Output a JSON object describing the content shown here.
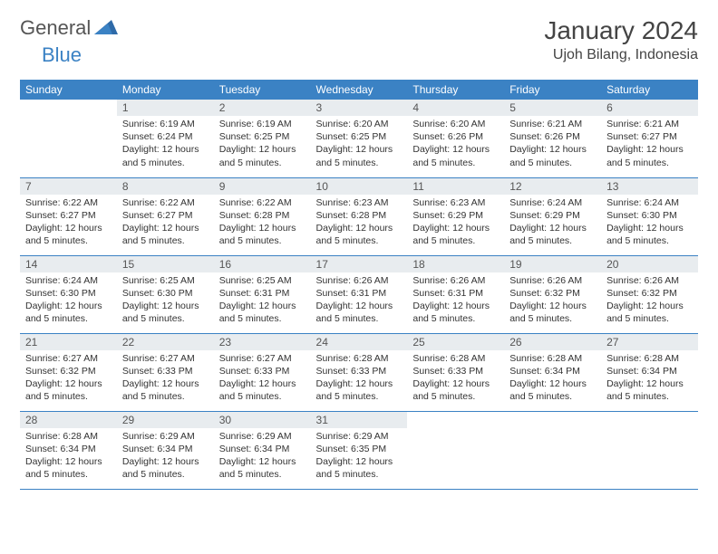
{
  "logo": {
    "text1": "General",
    "text2": "Blue"
  },
  "title": "January 2024",
  "location": "Ujoh Bilang, Indonesia",
  "colors": {
    "header_bg": "#3b82c4",
    "header_text": "#ffffff",
    "daynum_bg": "#e8ecef",
    "border": "#3b82c4",
    "logo_gray": "#555555",
    "logo_blue": "#3b82c4"
  },
  "weekdays": [
    "Sunday",
    "Monday",
    "Tuesday",
    "Wednesday",
    "Thursday",
    "Friday",
    "Saturday"
  ],
  "weeks": [
    [
      null,
      {
        "n": "1",
        "sr": "6:19 AM",
        "ss": "6:24 PM",
        "dl": "12 hours and 5 minutes."
      },
      {
        "n": "2",
        "sr": "6:19 AM",
        "ss": "6:25 PM",
        "dl": "12 hours and 5 minutes."
      },
      {
        "n": "3",
        "sr": "6:20 AM",
        "ss": "6:25 PM",
        "dl": "12 hours and 5 minutes."
      },
      {
        "n": "4",
        "sr": "6:20 AM",
        "ss": "6:26 PM",
        "dl": "12 hours and 5 minutes."
      },
      {
        "n": "5",
        "sr": "6:21 AM",
        "ss": "6:26 PM",
        "dl": "12 hours and 5 minutes."
      },
      {
        "n": "6",
        "sr": "6:21 AM",
        "ss": "6:27 PM",
        "dl": "12 hours and 5 minutes."
      }
    ],
    [
      {
        "n": "7",
        "sr": "6:22 AM",
        "ss": "6:27 PM",
        "dl": "12 hours and 5 minutes."
      },
      {
        "n": "8",
        "sr": "6:22 AM",
        "ss": "6:27 PM",
        "dl": "12 hours and 5 minutes."
      },
      {
        "n": "9",
        "sr": "6:22 AM",
        "ss": "6:28 PM",
        "dl": "12 hours and 5 minutes."
      },
      {
        "n": "10",
        "sr": "6:23 AM",
        "ss": "6:28 PM",
        "dl": "12 hours and 5 minutes."
      },
      {
        "n": "11",
        "sr": "6:23 AM",
        "ss": "6:29 PM",
        "dl": "12 hours and 5 minutes."
      },
      {
        "n": "12",
        "sr": "6:24 AM",
        "ss": "6:29 PM",
        "dl": "12 hours and 5 minutes."
      },
      {
        "n": "13",
        "sr": "6:24 AM",
        "ss": "6:30 PM",
        "dl": "12 hours and 5 minutes."
      }
    ],
    [
      {
        "n": "14",
        "sr": "6:24 AM",
        "ss": "6:30 PM",
        "dl": "12 hours and 5 minutes."
      },
      {
        "n": "15",
        "sr": "6:25 AM",
        "ss": "6:30 PM",
        "dl": "12 hours and 5 minutes."
      },
      {
        "n": "16",
        "sr": "6:25 AM",
        "ss": "6:31 PM",
        "dl": "12 hours and 5 minutes."
      },
      {
        "n": "17",
        "sr": "6:26 AM",
        "ss": "6:31 PM",
        "dl": "12 hours and 5 minutes."
      },
      {
        "n": "18",
        "sr": "6:26 AM",
        "ss": "6:31 PM",
        "dl": "12 hours and 5 minutes."
      },
      {
        "n": "19",
        "sr": "6:26 AM",
        "ss": "6:32 PM",
        "dl": "12 hours and 5 minutes."
      },
      {
        "n": "20",
        "sr": "6:26 AM",
        "ss": "6:32 PM",
        "dl": "12 hours and 5 minutes."
      }
    ],
    [
      {
        "n": "21",
        "sr": "6:27 AM",
        "ss": "6:32 PM",
        "dl": "12 hours and 5 minutes."
      },
      {
        "n": "22",
        "sr": "6:27 AM",
        "ss": "6:33 PM",
        "dl": "12 hours and 5 minutes."
      },
      {
        "n": "23",
        "sr": "6:27 AM",
        "ss": "6:33 PM",
        "dl": "12 hours and 5 minutes."
      },
      {
        "n": "24",
        "sr": "6:28 AM",
        "ss": "6:33 PM",
        "dl": "12 hours and 5 minutes."
      },
      {
        "n": "25",
        "sr": "6:28 AM",
        "ss": "6:33 PM",
        "dl": "12 hours and 5 minutes."
      },
      {
        "n": "26",
        "sr": "6:28 AM",
        "ss": "6:34 PM",
        "dl": "12 hours and 5 minutes."
      },
      {
        "n": "27",
        "sr": "6:28 AM",
        "ss": "6:34 PM",
        "dl": "12 hours and 5 minutes."
      }
    ],
    [
      {
        "n": "28",
        "sr": "6:28 AM",
        "ss": "6:34 PM",
        "dl": "12 hours and 5 minutes."
      },
      {
        "n": "29",
        "sr": "6:29 AM",
        "ss": "6:34 PM",
        "dl": "12 hours and 5 minutes."
      },
      {
        "n": "30",
        "sr": "6:29 AM",
        "ss": "6:34 PM",
        "dl": "12 hours and 5 minutes."
      },
      {
        "n": "31",
        "sr": "6:29 AM",
        "ss": "6:35 PM",
        "dl": "12 hours and 5 minutes."
      },
      null,
      null,
      null
    ]
  ],
  "labels": {
    "sunrise": "Sunrise:",
    "sunset": "Sunset:",
    "daylight": "Daylight:"
  }
}
